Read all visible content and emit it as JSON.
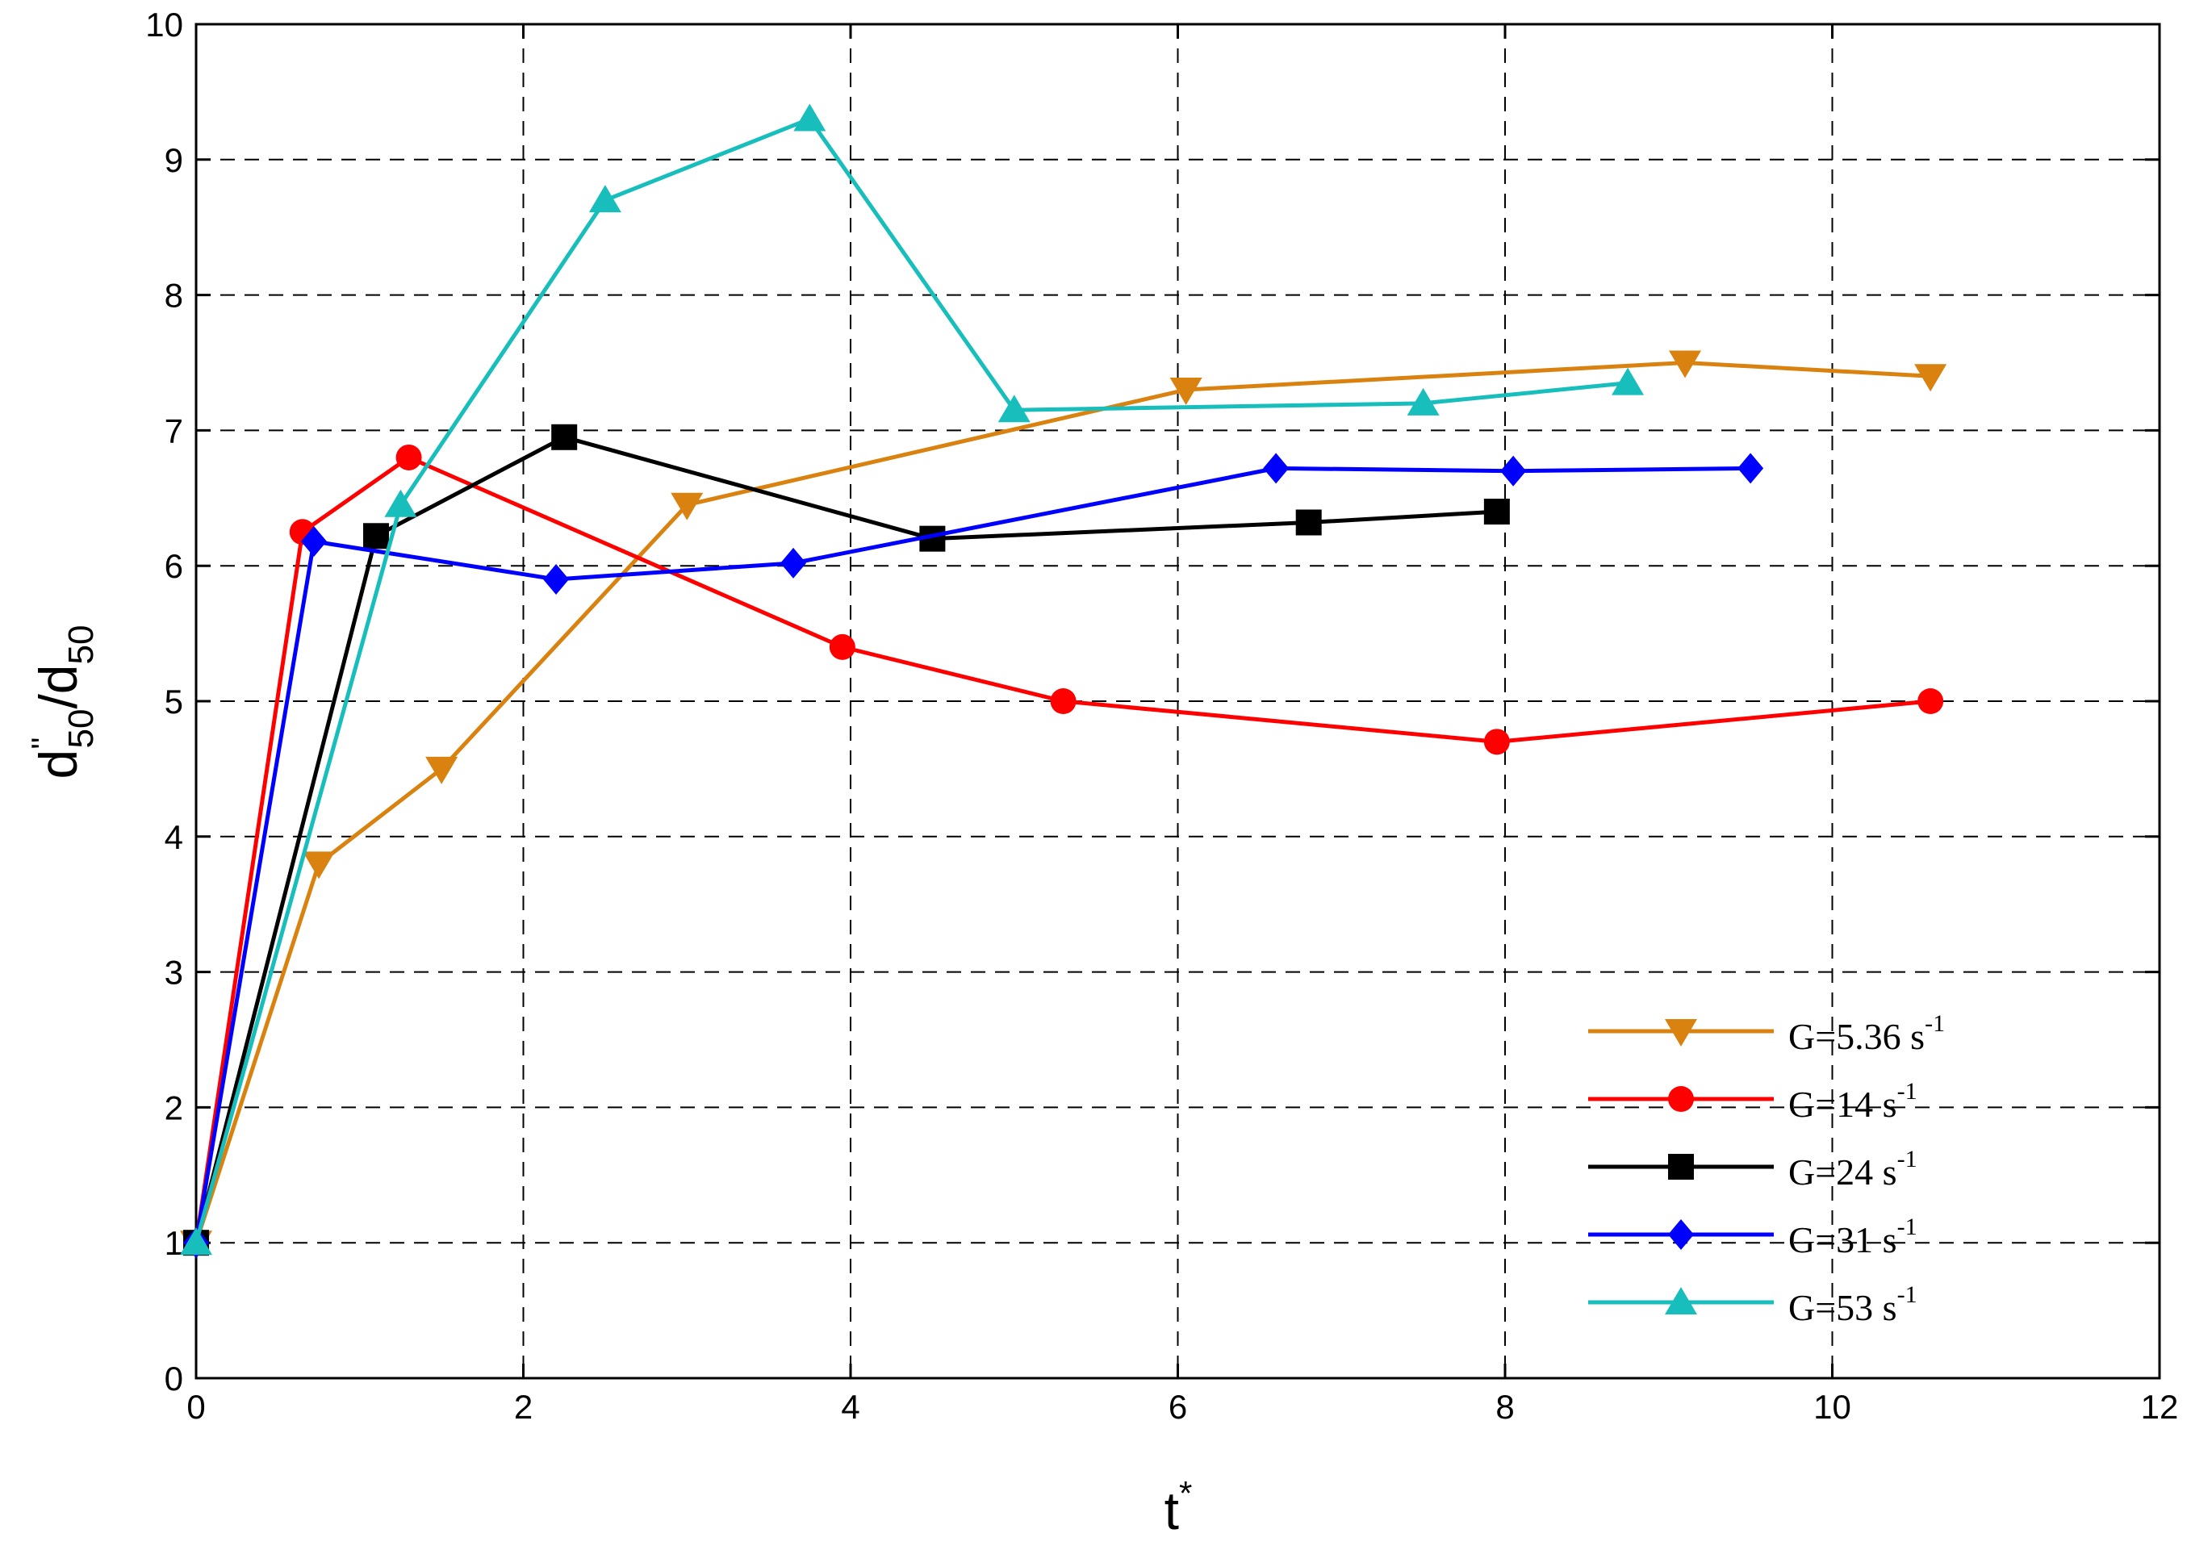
{
  "chart_data": {
    "type": "line",
    "title": "",
    "xlabel": {
      "base": "t",
      "sup": "*"
    },
    "ylabel": {
      "d1": "d",
      "d1_sup": "''",
      "d1_sub": "50",
      "slash": "/",
      "d2": "d",
      "d2_sub": "50"
    },
    "xlim": [
      0,
      12
    ],
    "ylim": [
      0,
      10
    ],
    "x_ticks": [
      0,
      2,
      4,
      6,
      8,
      10,
      12
    ],
    "y_ticks": [
      0,
      1,
      2,
      3,
      4,
      5,
      6,
      7,
      8,
      9,
      10
    ],
    "grid": true,
    "legend_position": "bottom-right",
    "series": [
      {
        "name": "G=5.36 s",
        "name_sup": "-1",
        "color": "#D9820F",
        "marker": "triangle-down",
        "x": [
          0,
          0.75,
          1.5,
          3.0,
          6.05,
          9.1,
          10.6
        ],
        "y": [
          1.0,
          3.8,
          4.5,
          6.45,
          7.3,
          7.5,
          7.4
        ]
      },
      {
        "name": "G=14 s",
        "name_sup": "-1",
        "color": "#FF0000",
        "marker": "circle",
        "x": [
          0,
          0.65,
          1.3,
          3.95,
          5.3,
          7.95,
          10.6
        ],
        "y": [
          1.0,
          6.25,
          6.8,
          5.4,
          5.0,
          4.7,
          5.0
        ]
      },
      {
        "name": "G=24 s",
        "name_sup": "-1",
        "color": "#000000",
        "marker": "square",
        "x": [
          0,
          1.1,
          2.25,
          4.5,
          6.8,
          7.95
        ],
        "y": [
          1.0,
          6.22,
          6.95,
          6.2,
          6.32,
          6.4
        ]
      },
      {
        "name": "G=31 s",
        "name_sup": "-1",
        "color": "#0000FF",
        "marker": "diamond",
        "x": [
          0,
          0.72,
          2.2,
          3.65,
          6.6,
          8.05,
          9.5
        ],
        "y": [
          1.0,
          6.18,
          5.9,
          6.02,
          6.72,
          6.7,
          6.72
        ]
      },
      {
        "name": "G=53 s",
        "name_sup": "-1",
        "color": "#17BEBB",
        "marker": "triangle-up",
        "x": [
          0,
          1.25,
          2.5,
          3.75,
          5.0,
          7.5,
          8.75
        ],
        "y": [
          1.0,
          6.45,
          8.7,
          9.3,
          7.15,
          7.2,
          7.35
        ]
      }
    ]
  }
}
